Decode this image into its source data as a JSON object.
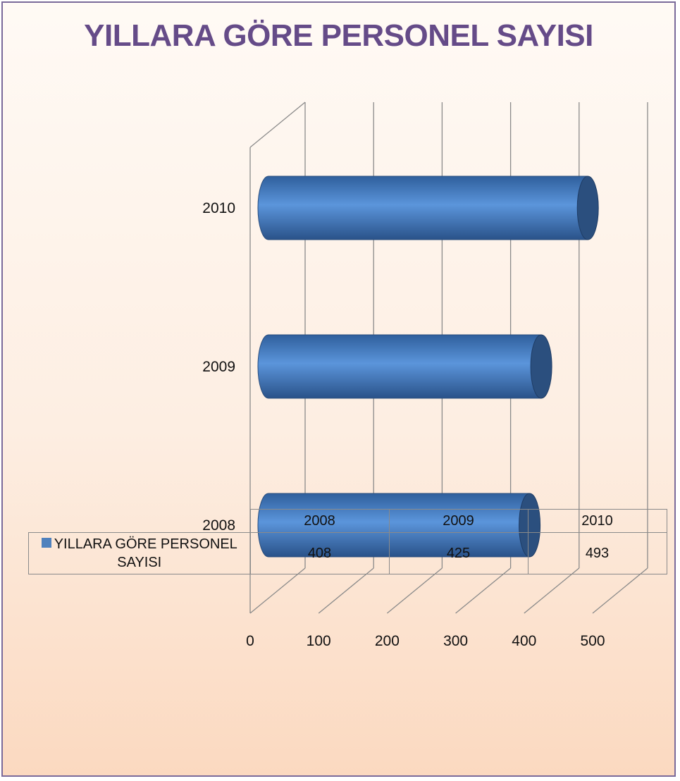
{
  "title": "YILLARA GÖRE PERSONEL SAYISI",
  "chart_data": {
    "type": "bar",
    "orientation": "horizontal",
    "style": "3d-cylinder",
    "categories": [
      "2008",
      "2009",
      "2010"
    ],
    "series": [
      {
        "name": "YILLARA GÖRE PERSONEL SAYISI",
        "values": [
          408,
          425,
          493
        ],
        "color": "#4f81bd"
      }
    ],
    "xlim": [
      0,
      500
    ],
    "x_ticks": [
      "0",
      "100",
      "200",
      "300",
      "400",
      "500"
    ],
    "grid": true,
    "data_table": true,
    "legend_in_table": true
  },
  "table": {
    "headers": [
      "2008",
      "2009",
      "2010"
    ],
    "series_label": "YILLARA GÖRE PERSONEL SAYISI",
    "values": [
      "408",
      "425",
      "493"
    ]
  },
  "colors": {
    "title": "#654b88",
    "bar": "#4f81bd",
    "bar_dark": "#2b4f7e",
    "frame_border": "#7a6a9a",
    "gridline": "#8a8a8a"
  }
}
